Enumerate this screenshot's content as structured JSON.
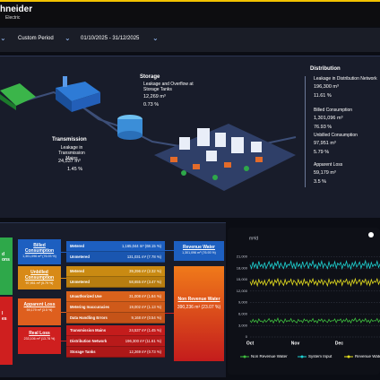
{
  "header": {
    "logo_top": "hneider",
    "logo_bottom": "Electric"
  },
  "filters": {
    "period_type": "Custom Period",
    "date_range": "01/10/2025 - 31/12/2025"
  },
  "diagram": {
    "storage": {
      "title": "Storage",
      "label": "Leakage and Overflow at Storage Tanks",
      "volume": "12,269 m³",
      "percent": "0.73 %"
    },
    "transmission": {
      "title": "Transmission",
      "label": "Leakage in Transmission Mains",
      "volume": "24,537 m³",
      "percent": "1.45 %"
    },
    "distribution": {
      "title": "Distribution",
      "items": [
        {
          "label": "Leakage in Distribution Network",
          "volume": "196,300 m³",
          "percent": "11.61 %"
        },
        {
          "label": "Billed Consumption",
          "volume": "1,301,096 m³",
          "percent": "76.93 %"
        },
        {
          "label": "Unbilled Consumption",
          "volume": "97,951 m³",
          "percent": "5.79 %"
        },
        {
          "label": "Apparent Loss",
          "volume": "59,179 m³",
          "percent": "3.5 %"
        }
      ]
    }
  },
  "water_balance": {
    "col1": [
      {
        "lines": [
          "d",
          "ons"
        ]
      },
      {
        "lines": [
          "l",
          "es"
        ]
      }
    ],
    "col2": [
      {
        "name": "Billed Consumption",
        "value": "1,301,096 m³ (76.93 %)"
      },
      {
        "name": "Unbilled Consumption",
        "value": "97,951 m³ (5.79 %)"
      },
      {
        "name": "Apparent Loss",
        "value": "59,179 m³ (3.5 %)"
      },
      {
        "name": "Real Loss",
        "value": "233,106 m³ (13.78 %)"
      }
    ],
    "col3": [
      {
        "name": "Metered",
        "value": "1,165,044 m³ (68.15 %)"
      },
      {
        "name": "Unmetered",
        "value": "131,031 m³ (7.78 %)"
      },
      {
        "name": "Metered",
        "value": "39,296 m³ (2.32 %)"
      },
      {
        "name": "Unmetered",
        "value": "58,655 m³ (3.47 %)"
      },
      {
        "name": "Unauthorized Use",
        "value": "31,008 m³ (1.84 %)"
      },
      {
        "name": "Metering Inaccuracies",
        "value": "19,002 m³ (1.13 %)"
      },
      {
        "name": "Data Handling Errors",
        "value": "9,168 m³ (0.54 %)"
      },
      {
        "name": "Transmission Mains",
        "value": "24,537 m³ (1.45 %)"
      },
      {
        "name": "Distribution Network",
        "value": "196,300 m³ (11.61 %)"
      },
      {
        "name": "Storage Tanks",
        "value": "12,269 m³ (0.73 %)"
      }
    ],
    "revenue_water": {
      "name": "Revenue Water",
      "value": "1,301,096 m³ (76.93 %)"
    },
    "non_revenue_water": {
      "name": "Non Revenue Water",
      "value": "390,236 m³ (23.07 %)"
    }
  },
  "chart_data": {
    "type": "line",
    "y_label": "m³/d",
    "categories": [
      "Oct",
      null,
      null,
      null,
      null,
      null,
      null,
      null,
      null,
      null,
      null,
      null,
      null,
      null,
      null,
      null,
      null,
      null,
      null,
      null,
      null,
      null,
      null,
      null,
      null,
      null,
      null,
      null,
      null,
      null,
      null,
      "Nov",
      null,
      null,
      null,
      null,
      null,
      null,
      null,
      null,
      null,
      null,
      null,
      null,
      null,
      null,
      null,
      null,
      null,
      null,
      null,
      null,
      null,
      null,
      null,
      null,
      null,
      null,
      null,
      null,
      null,
      "Dec",
      null,
      null,
      null,
      null,
      null,
      null,
      null,
      null,
      null,
      null,
      null,
      null,
      null,
      null,
      null,
      null,
      null,
      null,
      null,
      null,
      null,
      null,
      null,
      null,
      null,
      null,
      null,
      null,
      null,
      null
    ],
    "series": [
      {
        "name": "Non Revenue Water",
        "color": "#3fbf3f",
        "values": [
          4300,
          3800,
          4600,
          3900,
          4400,
          3700,
          4700,
          4100,
          4200,
          3800,
          4500,
          3900,
          4300,
          4800,
          4000,
          4400,
          3700,
          4600,
          4100,
          4900,
          3800,
          4500,
          4200,
          3700,
          4700,
          4000,
          4300,
          4100,
          4800,
          3900,
          4400,
          4000,
          3700,
          4600,
          4100,
          4300,
          3800,
          4700,
          4200,
          4500,
          3800,
          4400,
          4100,
          4800,
          3900,
          4300,
          3700,
          4600,
          4200,
          4700,
          3900,
          4500,
          4100,
          3800,
          4600,
          4000,
          4300,
          4200,
          4700,
          3800,
          4500,
          4300,
          4700,
          3800,
          4500,
          4100,
          4800,
          3900,
          4400,
          3700,
          4600,
          4200,
          4900,
          4000,
          4300,
          4700,
          3800,
          4500,
          4100,
          4800,
          3900,
          4400,
          3700,
          4600,
          4100,
          4300,
          4200,
          4800,
          3900,
          4500,
          3800,
          4600
        ]
      },
      {
        "name": "System Input",
        "color": "#1fd1d1",
        "values": [
          18900,
          17900,
          19600,
          18200,
          19100,
          17800,
          19800,
          18400,
          19000,
          18100,
          19500,
          17900,
          18800,
          19700,
          18300,
          19200,
          17700,
          19400,
          18600,
          19900,
          18000,
          19300,
          18500,
          17900,
          19600,
          18200,
          19000,
          18700,
          19800,
          18100,
          19200,
          17800,
          19500,
          18400,
          19100,
          18000,
          19700,
          18300,
          18900,
          19600,
          17900,
          19300,
          18600,
          19900,
          18200,
          19000,
          17800,
          19400,
          18500,
          19800,
          18100,
          19200,
          18700,
          17900,
          19600,
          18300,
          19000,
          18400,
          19700,
          18000,
          19300,
          18800,
          19500,
          17900,
          19100,
          18600,
          19800,
          18200,
          19000,
          17800,
          19400,
          18500,
          19700,
          18300,
          18900,
          19600,
          18000,
          19200,
          18700,
          19900,
          18100,
          19300,
          17900,
          19500,
          18400,
          19000,
          18600,
          19800,
          18200,
          19100,
          17800,
          19400
        ]
      },
      {
        "name": "Revenue Water",
        "color": "#e6e01e",
        "values": [
          14500,
          13600,
          14900,
          13800,
          14700,
          13400,
          15000,
          14000,
          14600,
          13700,
          14800,
          13500,
          14300,
          15100,
          13900,
          14700,
          13300,
          14900,
          14200,
          15200,
          13600,
          14800,
          14100,
          13500,
          15000,
          13800,
          14600,
          14300,
          15100,
          13700,
          14800,
          14400,
          13500,
          15000,
          13900,
          14700,
          13600,
          15100,
          14000,
          14500,
          13400,
          14900,
          14200,
          15200,
          13800,
          14600,
          13500,
          14800,
          14100,
          15000,
          13700,
          14700,
          14300,
          13400,
          15100,
          13900,
          14500,
          14000,
          14900,
          13600,
          14800,
          14200,
          15000,
          13500,
          14700,
          14300,
          15100,
          13800,
          14600,
          13400,
          14900,
          14000,
          15200,
          13900,
          14500,
          15000,
          13600,
          14800,
          14200,
          15100,
          13700,
          14700,
          13500,
          15000,
          14000,
          14600,
          14300,
          15200,
          13800,
          14700,
          13400,
          14900
        ]
      }
    ],
    "ylim": [
      0,
      22500
    ],
    "yticks": [
      0,
      {
        "value": 3000,
        "label": "3,000"
      },
      {
        "value": 6000,
        "label": "6,000"
      },
      {
        "value": 9000,
        "label": "9,000"
      },
      {
        "value": 12000,
        "label": "12,000"
      },
      {
        "value": 15000,
        "label": "15,000"
      },
      {
        "value": 18000,
        "label": "18,000"
      },
      {
        "value": 21000,
        "label": "21,000"
      }
    ],
    "grid": true
  }
}
